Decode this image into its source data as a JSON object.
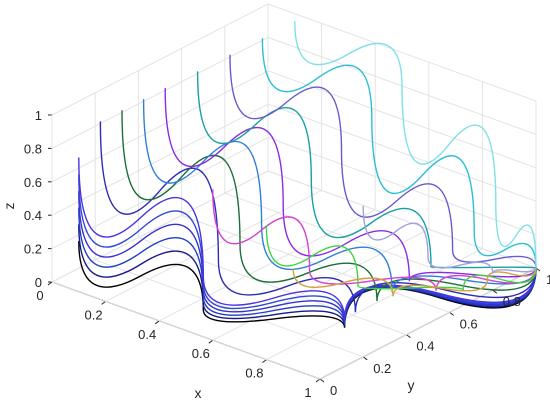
{
  "chart_data": {
    "type": "line",
    "projection": "3d",
    "title": "",
    "xlabel": "x",
    "ylabel": "y",
    "zlabel": "z",
    "xlim": [
      0,
      1
    ],
    "ylim": [
      0,
      1
    ],
    "zlim": [
      0,
      1
    ],
    "x_ticks": [
      "0",
      "0.2",
      "0.4",
      "0.6",
      "0.8",
      "1"
    ],
    "y_ticks": [
      "0",
      "0.2",
      "0.4",
      "0.6",
      "0.8",
      "1"
    ],
    "z_ticks": [
      "0",
      "0.2",
      "0.4",
      "0.6",
      "0.8",
      "1"
    ],
    "grid": true,
    "legend": "none",
    "trajectories_end_point": {
      "x": 1,
      "y": 1,
      "z": 0
    },
    "series": [
      {
        "color": "#000000",
        "points": [
          [
            0.1,
            0.0,
            0.3
          ],
          [
            0.5,
            0.08,
            0.07
          ],
          [
            0.85,
            0.3,
            0.02
          ],
          [
            1.0,
            1.0,
            0.0
          ]
        ]
      },
      {
        "color": "#1a1a8c",
        "points": [
          [
            0.1,
            0.0,
            0.4
          ],
          [
            0.5,
            0.08,
            0.11
          ],
          [
            0.85,
            0.3,
            0.03
          ],
          [
            1.0,
            1.0,
            0.0
          ]
        ]
      },
      {
        "color": "#1f3fbf",
        "points": [
          [
            0.1,
            0.0,
            0.5
          ],
          [
            0.5,
            0.08,
            0.15
          ],
          [
            0.85,
            0.3,
            0.04
          ],
          [
            1.0,
            1.0,
            0.0
          ]
        ]
      },
      {
        "color": "#3a2fd0",
        "points": [
          [
            0.1,
            0.0,
            0.6
          ],
          [
            0.5,
            0.08,
            0.19
          ],
          [
            0.85,
            0.3,
            0.05
          ],
          [
            1.0,
            1.0,
            0.0
          ]
        ]
      },
      {
        "color": "#2e4ad6",
        "points": [
          [
            0.1,
            0.0,
            0.7
          ],
          [
            0.5,
            0.08,
            0.23
          ],
          [
            0.85,
            0.3,
            0.06
          ],
          [
            1.0,
            1.0,
            0.0
          ]
        ]
      },
      {
        "color": "#4a32e0",
        "points": [
          [
            0.1,
            0.0,
            0.8
          ],
          [
            0.5,
            0.08,
            0.27
          ],
          [
            0.85,
            0.3,
            0.07
          ],
          [
            1.0,
            1.0,
            0.0
          ]
        ]
      },
      {
        "color": "#2d2db3",
        "points": [
          [
            0.1,
            0.1,
            0.95
          ],
          [
            0.5,
            0.15,
            0.32
          ],
          [
            0.85,
            0.35,
            0.08
          ],
          [
            1.0,
            1.0,
            0.0
          ]
        ]
      },
      {
        "color": "#1b6e3a",
        "points": [
          [
            0.1,
            0.2,
            0.95
          ],
          [
            0.5,
            0.25,
            0.35
          ],
          [
            0.85,
            0.45,
            0.08
          ],
          [
            1.0,
            1.0,
            0.0
          ]
        ]
      },
      {
        "color": "#2f7fd8",
        "points": [
          [
            0.1,
            0.3,
            0.95
          ],
          [
            0.5,
            0.35,
            0.4
          ],
          [
            0.85,
            0.52,
            0.09
          ],
          [
            1.0,
            1.0,
            0.0
          ]
        ]
      },
      {
        "color": "#8a2be2",
        "points": [
          [
            0.1,
            0.4,
            0.95
          ],
          [
            0.5,
            0.45,
            0.45
          ],
          [
            0.85,
            0.6,
            0.1
          ],
          [
            1.0,
            1.0,
            0.0
          ]
        ]
      },
      {
        "color": "#18a0a0",
        "points": [
          [
            0.1,
            0.55,
            0.95
          ],
          [
            0.5,
            0.58,
            0.52
          ],
          [
            0.85,
            0.7,
            0.12
          ],
          [
            1.0,
            1.0,
            0.0
          ]
        ]
      },
      {
        "color": "#6a5acd",
        "points": [
          [
            0.1,
            0.7,
            0.95
          ],
          [
            0.5,
            0.72,
            0.6
          ],
          [
            0.85,
            0.8,
            0.15
          ],
          [
            1.0,
            1.0,
            0.0
          ]
        ]
      },
      {
        "color": "#2bbfd3",
        "points": [
          [
            0.1,
            0.85,
            0.95
          ],
          [
            0.5,
            0.86,
            0.7
          ],
          [
            0.85,
            0.9,
            0.2
          ],
          [
            1.0,
            1.0,
            0.0
          ]
        ]
      },
      {
        "color": "#7fe0e8",
        "points": [
          [
            0.1,
            1.0,
            0.95
          ],
          [
            0.5,
            1.0,
            0.8
          ],
          [
            0.85,
            1.0,
            0.3
          ],
          [
            1.0,
            1.0,
            0.0
          ]
        ]
      },
      {
        "color": "#d43fd4",
        "points": [
          [
            0.6,
            0.0,
            0.9
          ],
          [
            0.8,
            0.2,
            0.4
          ],
          [
            0.95,
            0.6,
            0.1
          ],
          [
            1.0,
            1.0,
            0.0
          ]
        ]
      },
      {
        "color": "#3fd43f",
        "points": [
          [
            0.8,
            0.0,
            0.8
          ],
          [
            0.9,
            0.3,
            0.3
          ],
          [
            0.97,
            0.7,
            0.05
          ],
          [
            1.0,
            1.0,
            0.0
          ]
        ]
      },
      {
        "color": "#d4a03f",
        "points": [
          [
            0.9,
            0.0,
            0.6
          ],
          [
            0.95,
            0.4,
            0.2
          ],
          [
            0.98,
            0.8,
            0.05
          ],
          [
            1.0,
            1.0,
            0.0
          ]
        ]
      },
      {
        "color": "#a0a0e0",
        "points": [
          [
            1.0,
            0.2,
            0.9
          ],
          [
            1.0,
            0.5,
            0.4
          ],
          [
            1.0,
            0.8,
            0.1
          ],
          [
            1.0,
            1.0,
            0.0
          ]
        ]
      }
    ]
  }
}
